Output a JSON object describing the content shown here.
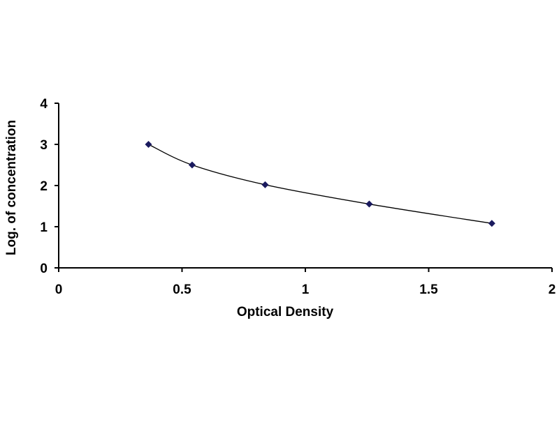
{
  "chart_data": {
    "type": "scatter",
    "title": "",
    "xlabel": "Optical Density",
    "ylabel": "Log. of concentration",
    "xlim": [
      0,
      2
    ],
    "ylim": [
      0,
      4
    ],
    "x_ticks": [
      "0",
      "0.5",
      "1",
      "1.5",
      "2"
    ],
    "y_ticks": [
      "0",
      "1",
      "2",
      "3",
      "4"
    ],
    "grid": false,
    "legend": "none",
    "trendline": "smooth curve through points",
    "series": [
      {
        "x": [
          0.364,
          0.541,
          0.837,
          1.259,
          1.756
        ],
        "y": [
          3.0,
          2.5,
          2.02,
          1.55,
          1.08
        ],
        "marker": "diamond",
        "marker_color": "#1a1a5e",
        "line_color": "#000000"
      }
    ]
  }
}
